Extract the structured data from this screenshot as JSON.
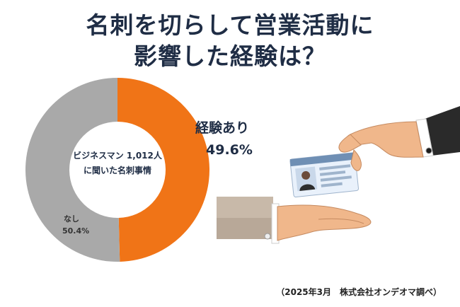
{
  "title": {
    "line1": "名刺を切らして営業活動に",
    "line2": "影響した経験は？"
  },
  "center_label": {
    "line1": "ビジネスマン 1,012人",
    "line2": "に聞いた名刺事情"
  },
  "source": "（2025年3月　株式会社オンデオマ調べ）",
  "colors": {
    "experience": "#f07417",
    "none": "#a9a9a9",
    "title": "#1f2d45"
  },
  "chart_data": {
    "type": "pie",
    "categories": [
      "経験あり",
      "なし"
    ],
    "values": [
      49.6,
      50.4
    ],
    "value_labels": [
      "49.6%",
      "50.4%"
    ],
    "donut": true
  },
  "illustration": {
    "icon": "business-card-exchange-hands-icon"
  }
}
